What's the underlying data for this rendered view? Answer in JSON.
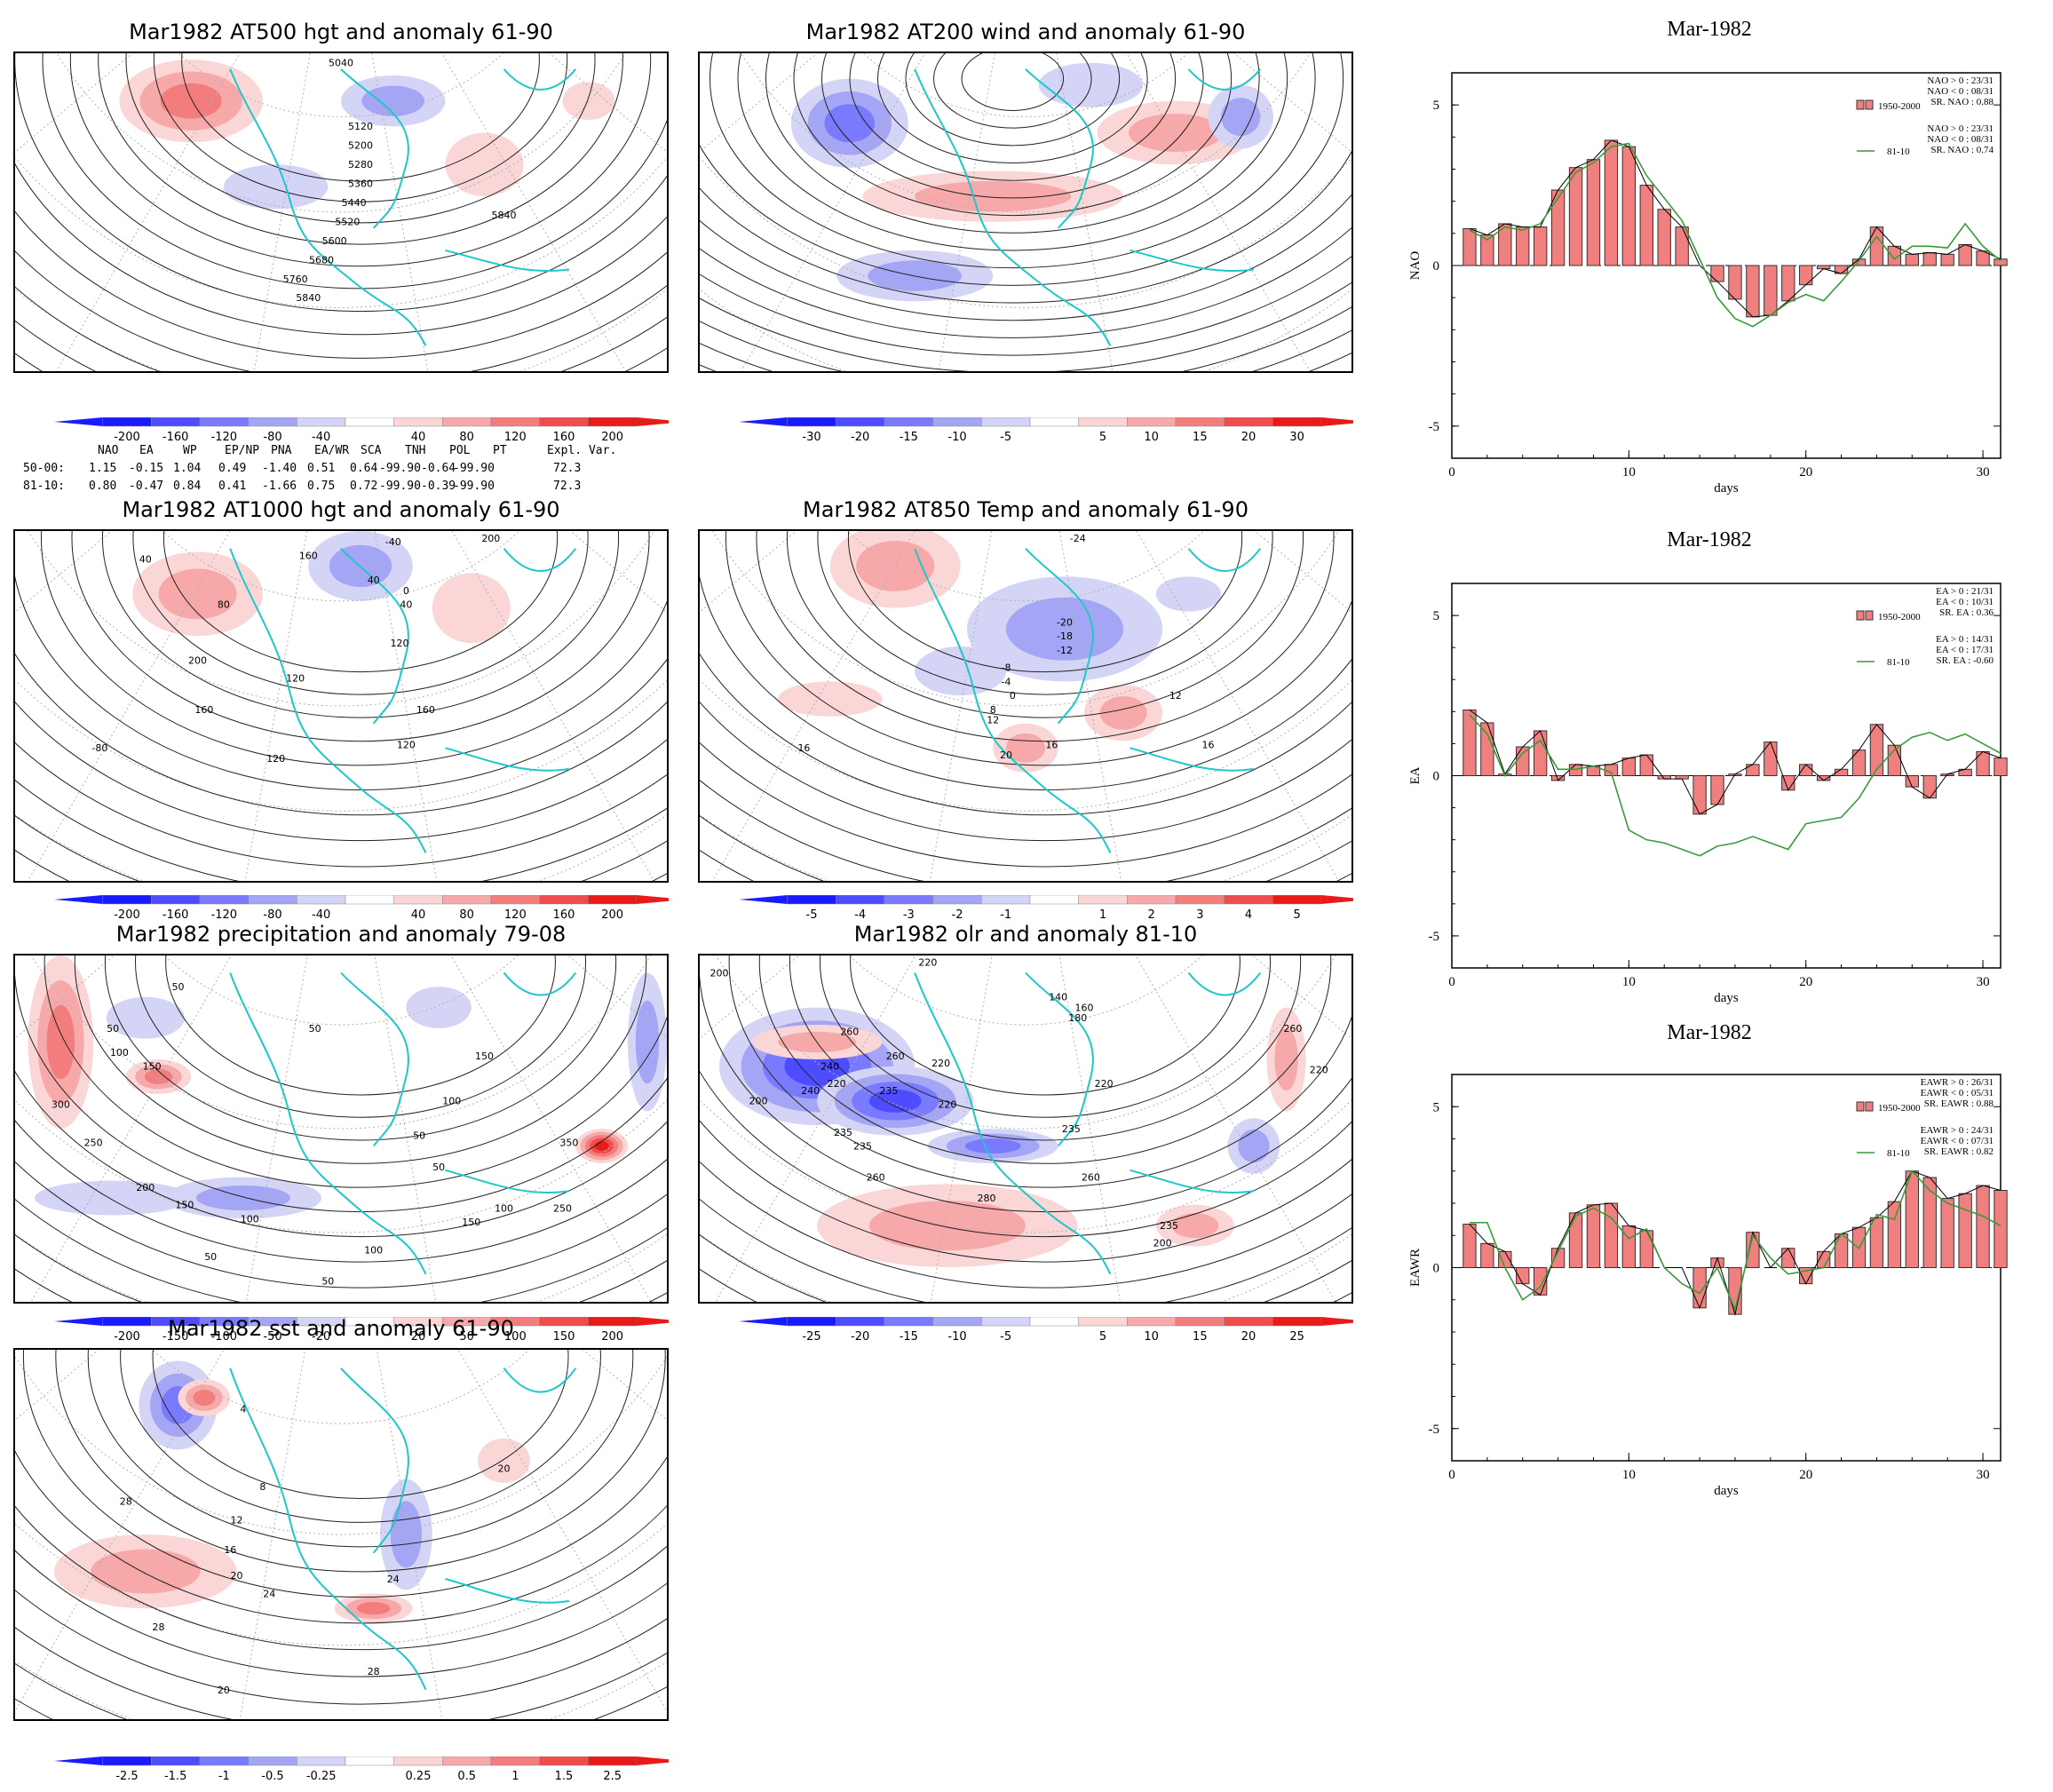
{
  "maps": [
    {
      "id": "at500",
      "title": "Mar1982 AT500 hgt and anomaly 61-90",
      "scale": [
        "-200",
        "-160",
        "-120",
        "-80",
        "-40",
        "40",
        "80",
        "120",
        "160",
        "200"
      ],
      "contour_labels": [
        "5040",
        "5120",
        "5200",
        "5280",
        "5360",
        "5440",
        "5520",
        "5600",
        "5680",
        "5760",
        "5840",
        "5840"
      ]
    },
    {
      "id": "at200",
      "title": "Mar1982 AT200 wind and anomaly 61-90",
      "scale": [
        "-30",
        "-20",
        "-15",
        "-10",
        "-5",
        "5",
        "10",
        "15",
        "20",
        "30"
      ],
      "contour_labels": []
    },
    {
      "id": "at1000",
      "title": "Mar1982 AT1000 hgt and anomaly 61-90",
      "scale": [
        "-200",
        "-160",
        "-120",
        "-80",
        "-40",
        "40",
        "80",
        "120",
        "160",
        "200"
      ],
      "contour_labels": [
        "40",
        "160",
        "-40",
        "200",
        "80",
        "200",
        "40",
        "0",
        "40",
        "120",
        "120",
        "160",
        "160",
        "-80",
        "120",
        "120"
      ]
    },
    {
      "id": "at850",
      "title": "Mar1982 AT850 Temp and anomaly 61-90",
      "scale": [
        "-5",
        "-4",
        "-3",
        "-2",
        "-1",
        "1",
        "2",
        "3",
        "4",
        "5"
      ],
      "contour_labels": [
        "-24",
        "-20",
        "-18",
        "-12",
        "-8",
        "-4",
        "0",
        "8",
        "12",
        "12",
        "16",
        "16",
        "20",
        "16"
      ]
    },
    {
      "id": "precip",
      "title": "Mar1982 precipitation and anomaly 79-08",
      "scale": [
        "-200",
        "-150",
        "-100",
        "-50",
        "-20",
        "20",
        "50",
        "100",
        "150",
        "200"
      ],
      "contour_labels": [
        "50",
        "100",
        "150",
        "50",
        "300",
        "250",
        "200",
        "150",
        "100",
        "50",
        "50",
        "150",
        "100",
        "50",
        "50",
        "100",
        "350",
        "150",
        "250",
        "100",
        "50"
      ]
    },
    {
      "id": "olr",
      "title": "Mar1982 olr and anomaly 81-10",
      "scale": [
        "-25",
        "-20",
        "-15",
        "-10",
        "-5",
        "5",
        "10",
        "15",
        "20",
        "25"
      ],
      "contour_labels": [
        "200",
        "220",
        "260",
        "240",
        "220",
        "235",
        "235",
        "235",
        "220",
        "200",
        "140",
        "160",
        "180",
        "260",
        "240",
        "220",
        "235",
        "260",
        "280",
        "260",
        "220",
        "235",
        "200",
        "260",
        "220"
      ]
    },
    {
      "id": "sst",
      "title": "Mar1982 sst and anomaly 61-90",
      "scale": [
        "-2.5",
        "-1.5",
        "-1",
        "-0.5",
        "-0.25",
        "0.25",
        "0.5",
        "1",
        "1.5",
        "2.5"
      ],
      "contour_labels": [
        "4",
        "8",
        "12",
        "16",
        "20",
        "24",
        "28",
        "28",
        "20",
        "24",
        "28",
        "20"
      ]
    }
  ],
  "index_table": {
    "headers": [
      "NAO",
      "EA",
      "WP",
      "EP/NP",
      "PNA",
      "EA/WR",
      "SCA",
      "TNH",
      "POL",
      "PT",
      "Expl. Var."
    ],
    "rows": [
      {
        "label": "50-00:",
        "values": [
          "1.15",
          "-0.15",
          "1.04",
          "0.49",
          "-1.40",
          "0.51",
          "0.64",
          "-99.90",
          "-0.64",
          "-99.90",
          "72.3"
        ]
      },
      {
        "label": "81-10:",
        "values": [
          "0.80",
          "-0.47",
          "0.84",
          "0.41",
          "-1.66",
          "0.75",
          "0.72",
          "-99.90",
          "-0.39",
          "-99.90",
          "72.3"
        ]
      }
    ]
  },
  "chart_data": [
    {
      "type": "bar",
      "title": "Mar-1982",
      "ylabel": "NAO",
      "xlabel": "days",
      "xlim": [
        0,
        31
      ],
      "ylim": [
        -6,
        6
      ],
      "x_ticks": [
        "0",
        "10",
        "20",
        "30"
      ],
      "y_ticks": [
        "5",
        "0",
        "-5"
      ],
      "legend": [
        {
          "name": "1950-2000",
          "stats": [
            "NAO > 0 : 23/31",
            "NAO < 0 : 08/31",
            "SR. NAO : 0.88"
          ]
        },
        {
          "name": "81-10",
          "stats": [
            "NAO > 0 : 23/31",
            "NAO < 0 : 08/31",
            "SR. NAO : 0.74"
          ]
        }
      ],
      "bar_color": "#f08080",
      "line_color": "#3a9a3a",
      "days": [
        1,
        2,
        3,
        4,
        5,
        6,
        7,
        8,
        9,
        10,
        11,
        12,
        13,
        14,
        15,
        16,
        17,
        18,
        19,
        20,
        21,
        22,
        23,
        24,
        25,
        26,
        27,
        28,
        29,
        30,
        31
      ],
      "bars": [
        1.15,
        0.95,
        1.3,
        1.2,
        1.2,
        2.35,
        3.05,
        3.3,
        3.9,
        3.7,
        2.5,
        1.75,
        1.2,
        0.0,
        -0.5,
        -1.05,
        -1.6,
        -1.55,
        -1.1,
        -0.6,
        -0.1,
        -0.25,
        0.2,
        1.2,
        0.6,
        0.35,
        0.4,
        0.35,
        0.65,
        0.45,
        0.2
      ],
      "line": [
        1.1,
        0.8,
        1.2,
        1.1,
        1.3,
        2.1,
        2.9,
        3.2,
        3.7,
        3.8,
        2.8,
        2.1,
        1.4,
        0.2,
        -1.0,
        -1.65,
        -1.9,
        -1.55,
        -1.15,
        -0.9,
        -1.1,
        -0.5,
        0.15,
        0.9,
        0.2,
        0.6,
        0.6,
        0.55,
        1.3,
        0.6,
        0.15
      ]
    },
    {
      "type": "bar",
      "title": "Mar-1982",
      "ylabel": "EA",
      "xlabel": "days",
      "xlim": [
        0,
        31
      ],
      "ylim": [
        -6,
        6
      ],
      "x_ticks": [
        "0",
        "10",
        "20",
        "30"
      ],
      "y_ticks": [
        "5",
        "0",
        "-5"
      ],
      "legend": [
        {
          "name": "1950-2000",
          "stats": [
            "EA > 0 : 21/31",
            "EA < 0 : 10/31",
            "SR. EA : 0.36"
          ]
        },
        {
          "name": "81-10",
          "stats": [
            "EA > 0 : 14/31",
            "EA < 0 : 17/31",
            "SR. EA : -0.60"
          ]
        }
      ],
      "bar_color": "#f08080",
      "line_color": "#3a9a3a",
      "days": [
        1,
        2,
        3,
        4,
        5,
        6,
        7,
        8,
        9,
        10,
        11,
        12,
        13,
        14,
        15,
        16,
        17,
        18,
        19,
        20,
        21,
        22,
        23,
        24,
        25,
        26,
        27,
        28,
        29,
        30,
        31
      ],
      "bars": [
        2.05,
        1.65,
        0.05,
        0.9,
        1.4,
        -0.15,
        0.35,
        0.3,
        0.35,
        0.55,
        0.65,
        -0.1,
        -0.1,
        -1.2,
        -0.9,
        0.05,
        0.35,
        1.05,
        -0.45,
        0.35,
        -0.15,
        0.2,
        0.8,
        1.6,
        0.95,
        -0.35,
        -0.7,
        0.05,
        0.2,
        0.75,
        0.55
      ],
      "line": [
        1.9,
        1.3,
        0.0,
        0.7,
        1.1,
        0.2,
        0.2,
        0.3,
        0.1,
        -1.7,
        -2.0,
        -2.1,
        -2.3,
        -2.5,
        -2.2,
        -2.1,
        -1.9,
        -2.1,
        -2.3,
        -1.5,
        -1.4,
        -1.3,
        -0.7,
        0.2,
        0.8,
        1.2,
        1.35,
        1.1,
        1.3,
        1.0,
        0.7
      ]
    },
    {
      "type": "bar",
      "title": "Mar-1982",
      "ylabel": "EAWR",
      "xlabel": "days",
      "xlim": [
        0,
        31
      ],
      "ylim": [
        -6,
        6
      ],
      "x_ticks": [
        "0",
        "10",
        "20",
        "30"
      ],
      "y_ticks": [
        "5",
        "0",
        "-5"
      ],
      "legend": [
        {
          "name": "1950-2000",
          "stats": [
            "EAWR > 0 : 26/31",
            "EAWR < 0 : 05/31",
            "SR. EAWR : 0.88"
          ]
        },
        {
          "name": "81-10",
          "stats": [
            "EAWR > 0 : 24/31",
            "EAWR < 0 : 07/31",
            "SR. EAWR : 0.82"
          ]
        }
      ],
      "bar_color": "#f08080",
      "line_color": "#3a9a3a",
      "days": [
        1,
        2,
        3,
        4,
        5,
        6,
        7,
        8,
        9,
        10,
        11,
        12,
        13,
        14,
        15,
        16,
        17,
        18,
        19,
        20,
        21,
        22,
        23,
        24,
        25,
        26,
        27,
        28,
        29,
        30,
        31
      ],
      "bars": [
        1.35,
        0.75,
        0.5,
        -0.5,
        -0.85,
        0.6,
        1.7,
        1.95,
        2.0,
        1.3,
        1.15,
        0.0,
        0.0,
        -1.25,
        0.3,
        -1.45,
        1.1,
        0.0,
        0.6,
        -0.5,
        0.5,
        1.05,
        1.25,
        1.55,
        2.05,
        3.0,
        2.8,
        2.15,
        2.3,
        2.55,
        2.4
      ],
      "line": [
        1.4,
        1.4,
        0.0,
        -1.0,
        -0.6,
        0.5,
        1.6,
        1.85,
        1.55,
        0.9,
        1.2,
        0.0,
        -0.5,
        -0.8,
        0.0,
        -1.3,
        1.0,
        0.3,
        -0.2,
        -0.1,
        0.0,
        1.05,
        0.6,
        1.65,
        1.5,
        3.0,
        2.4,
        2.0,
        1.8,
        1.6,
        1.3
      ]
    }
  ]
}
